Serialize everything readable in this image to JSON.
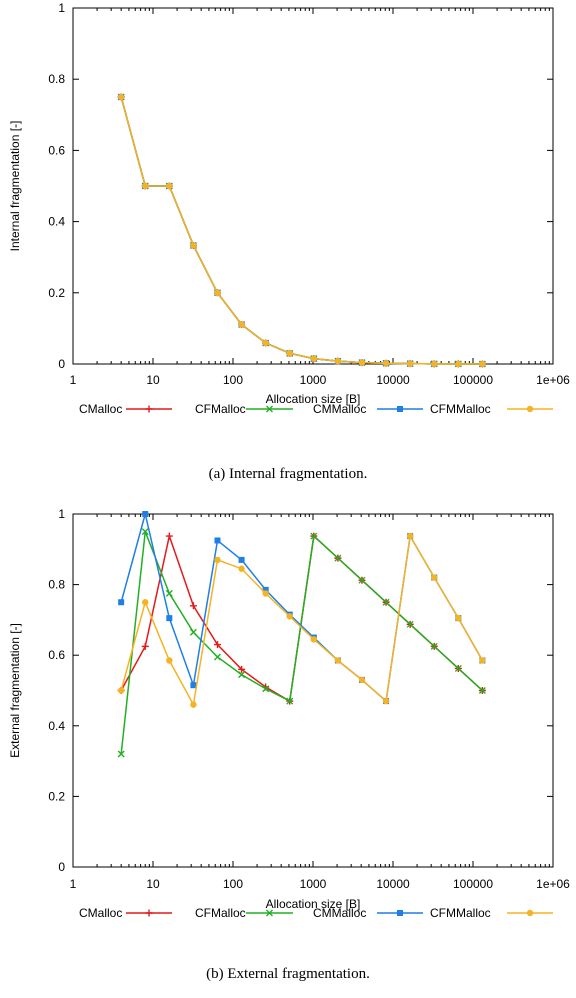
{
  "chart_data": [
    {
      "type": "line",
      "caption": "(a)  Internal fragmentation.",
      "xlabel": "Allocation size [B]",
      "ylabel": "Internal fragmentation [-]",
      "xscale": "log",
      "xlim": [
        1,
        1000000
      ],
      "ylim": [
        0,
        1
      ],
      "xticks": [
        "1",
        "10",
        "100",
        "1000",
        "10000",
        "100000",
        "1e+06"
      ],
      "yticks": [
        "0",
        "0.2",
        "0.4",
        "0.6",
        "0.8",
        "1"
      ],
      "grid": false,
      "legend_position": "bottom",
      "x": [
        4,
        8,
        16,
        32,
        64,
        128,
        256,
        512,
        1024,
        2048,
        4096,
        8192,
        16384,
        32768,
        65536,
        131072
      ],
      "series": [
        {
          "name": "CMalloc",
          "color": "#e41a1c",
          "marker": "plus",
          "values": [
            0.75,
            0.5,
            0.5,
            0.333,
            0.2,
            0.111,
            0.059,
            0.03,
            0.015,
            0.008,
            0.004,
            0.002,
            0.001,
            0.0005,
            0.0002,
            0.0001
          ]
        },
        {
          "name": "CFMalloc",
          "color": "#22b022",
          "marker": "x",
          "values": [
            0.75,
            0.5,
            0.5,
            0.333,
            0.2,
            0.111,
            0.059,
            0.03,
            0.015,
            0.008,
            0.004,
            0.002,
            0.001,
            0.0005,
            0.0002,
            0.0001
          ]
        },
        {
          "name": "CMMalloc",
          "color": "#1e7fe6",
          "marker": "square",
          "values": [
            0.75,
            0.5,
            0.5,
            0.333,
            0.2,
            0.111,
            0.059,
            0.03,
            0.015,
            0.008,
            0.004,
            0.002,
            0.001,
            0.0005,
            0.0002,
            0.0001
          ]
        },
        {
          "name": "CFMMalloc",
          "color": "#f5b324",
          "marker": "circle",
          "values": [
            0.75,
            0.5,
            0.5,
            0.333,
            0.2,
            0.111,
            0.059,
            0.03,
            0.015,
            0.008,
            0.004,
            0.002,
            0.001,
            0.0005,
            0.0002,
            0.0001
          ]
        }
      ]
    },
    {
      "type": "line",
      "caption": "(b)  External fragmentation.",
      "xlabel": "Allocation size [B]",
      "ylabel": "External fragmentation [-]",
      "xscale": "log",
      "xlim": [
        1,
        1000000
      ],
      "ylim": [
        0,
        1
      ],
      "xticks": [
        "1",
        "10",
        "100",
        "1000",
        "10000",
        "100000",
        "1e+06"
      ],
      "yticks": [
        "0",
        "0.2",
        "0.4",
        "0.6",
        "0.8",
        "1"
      ],
      "grid": false,
      "legend_position": "bottom",
      "x": [
        4,
        8,
        16,
        32,
        64,
        128,
        256,
        512,
        1024,
        2048,
        4096,
        8192,
        16384,
        32768,
        65536,
        131072
      ],
      "series": [
        {
          "name": "CMalloc",
          "color": "#e41a1c",
          "marker": "plus",
          "x": [
            4,
            8,
            16,
            32,
            64,
            128,
            256,
            512,
            1024,
            2048,
            4096,
            8192,
            16384,
            32768,
            65536,
            131072
          ],
          "values": [
            0.5,
            0.625,
            0.9375,
            0.74,
            0.63,
            0.56,
            0.51,
            0.47,
            0.9375,
            0.875,
            0.8125,
            0.75,
            0.6875,
            0.625,
            0.5625,
            0.5
          ]
        },
        {
          "name": "CFMalloc",
          "color": "#22b022",
          "marker": "x",
          "x": [
            4,
            8,
            16,
            32,
            64,
            128,
            256,
            512,
            1024,
            2048,
            4096,
            8192,
            16384,
            32768,
            65536,
            131072
          ],
          "values": [
            0.32,
            0.95,
            0.775,
            0.665,
            0.595,
            0.545,
            0.505,
            0.47,
            0.9375,
            0.875,
            0.8125,
            0.75,
            0.6875,
            0.625,
            0.5625,
            0.5
          ]
        },
        {
          "name": "CMMalloc",
          "color": "#1e7fe6",
          "marker": "square",
          "x": [
            4,
            8,
            16,
            32,
            64,
            128,
            256,
            512,
            1024,
            2048,
            4096,
            8192,
            16384,
            32768,
            65536,
            131072
          ],
          "values": [
            0.75,
            1.0,
            0.705,
            0.515,
            0.925,
            0.87,
            0.785,
            0.715,
            0.65,
            0.585,
            0.53,
            0.47,
            0.9375,
            0.82,
            0.705,
            0.585
          ]
        },
        {
          "name": "CFMMalloc",
          "color": "#f5b324",
          "marker": "circle",
          "x": [
            4,
            8,
            16,
            32,
            64,
            128,
            256,
            512,
            1024,
            2048,
            4096,
            8192,
            16384,
            32768,
            65536,
            131072
          ],
          "values": [
            0.5,
            0.75,
            0.585,
            0.46,
            0.87,
            0.845,
            0.775,
            0.71,
            0.645,
            0.585,
            0.53,
            0.47,
            0.9375,
            0.82,
            0.705,
            0.585
          ]
        }
      ]
    }
  ]
}
